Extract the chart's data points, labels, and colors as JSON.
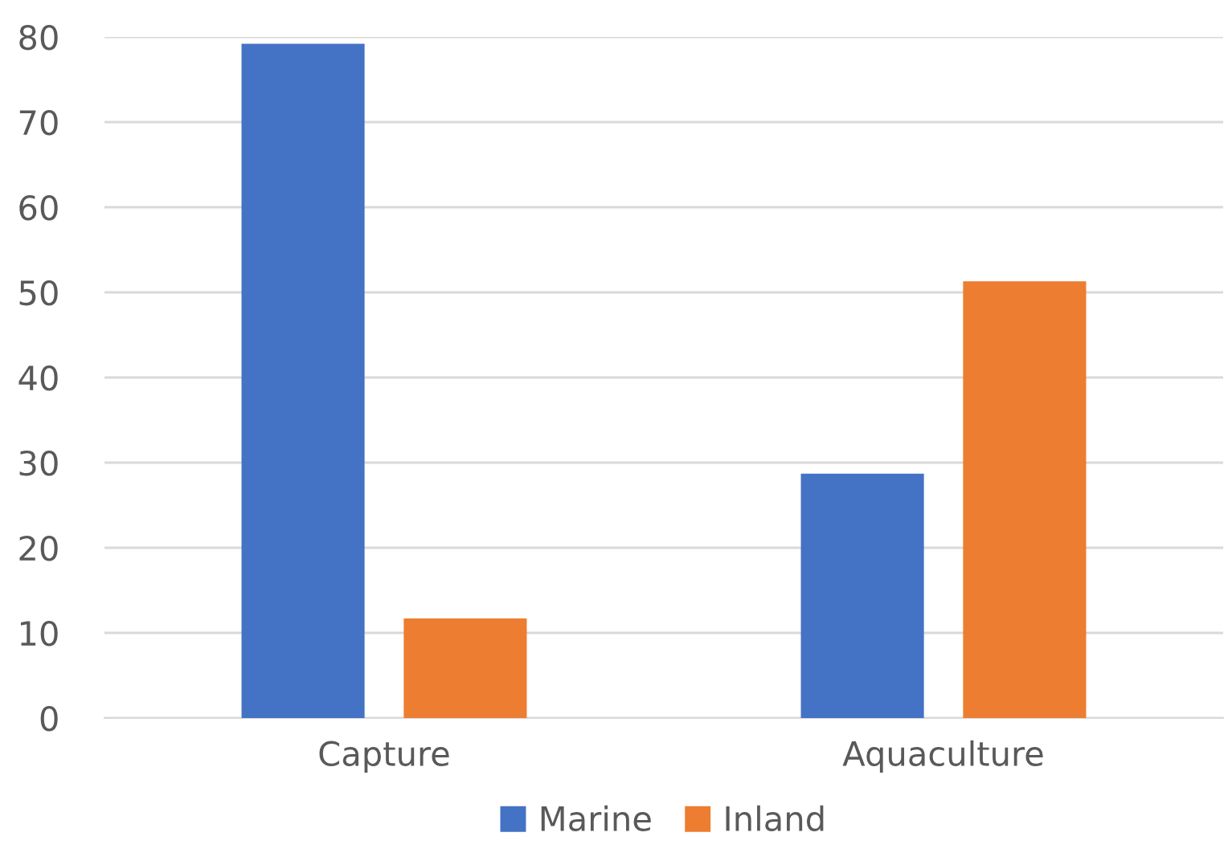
{
  "chart_data": {
    "type": "bar",
    "categories": [
      "Capture",
      "Aquaculture"
    ],
    "series": [
      {
        "name": "Marine",
        "color": "#4472c4",
        "values": [
          79.2,
          28.7
        ]
      },
      {
        "name": "Inland",
        "color": "#ed7d31",
        "values": [
          11.7,
          51.3
        ]
      }
    ],
    "ylim": [
      0,
      80
    ],
    "yticks": [
      0,
      10,
      20,
      30,
      40,
      50,
      60,
      70,
      80
    ],
    "grid": "y",
    "legend": "bottom"
  }
}
